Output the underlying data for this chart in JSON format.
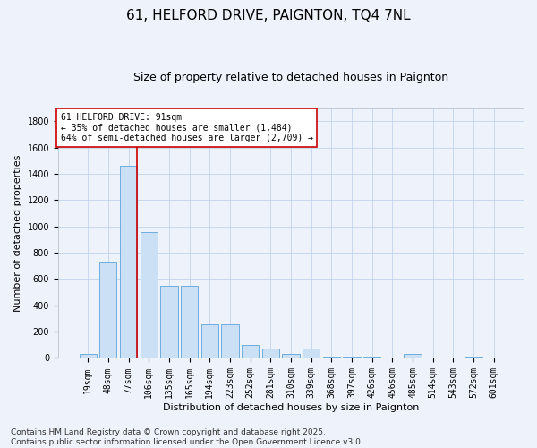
{
  "title": "61, HELFORD DRIVE, PAIGNTON, TQ4 7NL",
  "subtitle": "Size of property relative to detached houses in Paignton",
  "xlabel": "Distribution of detached houses by size in Paignton",
  "ylabel": "Number of detached properties",
  "categories": [
    "19sqm",
    "48sqm",
    "77sqm",
    "106sqm",
    "135sqm",
    "165sqm",
    "194sqm",
    "223sqm",
    "252sqm",
    "281sqm",
    "310sqm",
    "339sqm",
    "368sqm",
    "397sqm",
    "426sqm",
    "456sqm",
    "485sqm",
    "514sqm",
    "543sqm",
    "572sqm",
    "601sqm"
  ],
  "values": [
    30,
    730,
    1460,
    960,
    550,
    550,
    255,
    255,
    100,
    70,
    30,
    70,
    10,
    10,
    10,
    0,
    30,
    0,
    0,
    10,
    0
  ],
  "bar_color": "#cce0f5",
  "bar_edge_color": "#5ba3d9",
  "vline_color": "#cc0000",
  "vline_pos": 2.4,
  "annotation_text": "61 HELFORD DRIVE: 91sqm\n← 35% of detached houses are smaller (1,484)\n64% of semi-detached houses are larger (2,709) →",
  "annotation_box_facecolor": "#ffffff",
  "annotation_box_edgecolor": "#cc0000",
  "ylim": [
    0,
    1900
  ],
  "yticks": [
    0,
    200,
    400,
    600,
    800,
    1000,
    1200,
    1400,
    1600,
    1800
  ],
  "footnote": "Contains HM Land Registry data © Crown copyright and database right 2025.\nContains public sector information licensed under the Open Government Licence v3.0.",
  "background_color": "#eef3fb",
  "plot_bg_color": "#eef3fb",
  "title_fontsize": 11,
  "subtitle_fontsize": 9,
  "axis_label_fontsize": 8,
  "tick_fontsize": 7,
  "annotation_fontsize": 7,
  "footnote_fontsize": 6.5
}
